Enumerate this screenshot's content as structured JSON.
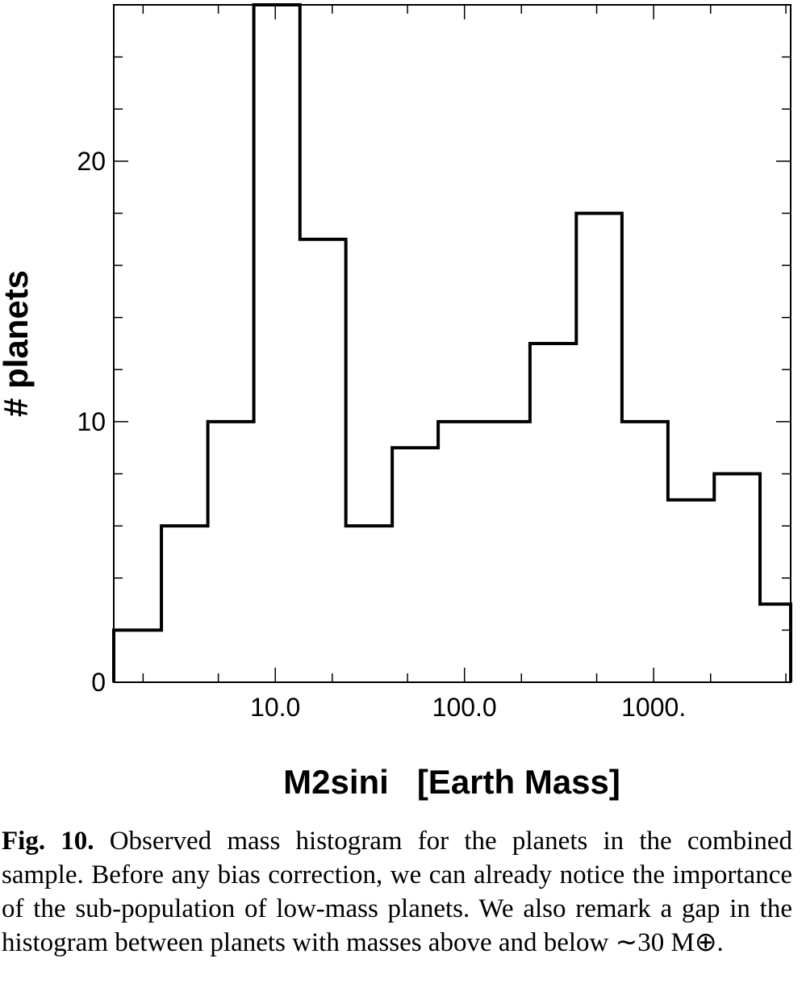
{
  "chart_data": {
    "type": "bar",
    "xscale": "log",
    "xlabel": "M2sini   [Earth Mass]",
    "ylabel": "# planets",
    "xlim": [
      1.4,
      5300
    ],
    "ylim": [
      0,
      26
    ],
    "x_ticks": [
      {
        "value": 10,
        "label": "10.0"
      },
      {
        "value": 100,
        "label": "100.0"
      },
      {
        "value": 1000,
        "label": "1000."
      }
    ],
    "y_ticks": [
      {
        "value": 0,
        "label": "0"
      },
      {
        "value": 10,
        "label": "10"
      },
      {
        "value": 20,
        "label": "20"
      }
    ],
    "bin_edges": [
      1.4,
      2.5,
      4.4,
      7.7,
      13.5,
      23.6,
      41.5,
      72.6,
      127,
      222,
      390,
      680,
      1190,
      2090,
      3650,
      5300
    ],
    "counts": [
      2,
      6,
      10,
      26,
      17,
      6,
      9,
      10,
      10,
      13,
      18,
      10,
      7,
      8,
      3
    ]
  },
  "caption": {
    "label": "Fig. 10.",
    "text": "Observed mass histogram for the planets in the combined sample. Before any bias correction, we can already notice the importance of the sub-population of low-mass planets. We also remark a gap in the histogram between planets with masses above and below ∼30 M⊕."
  }
}
